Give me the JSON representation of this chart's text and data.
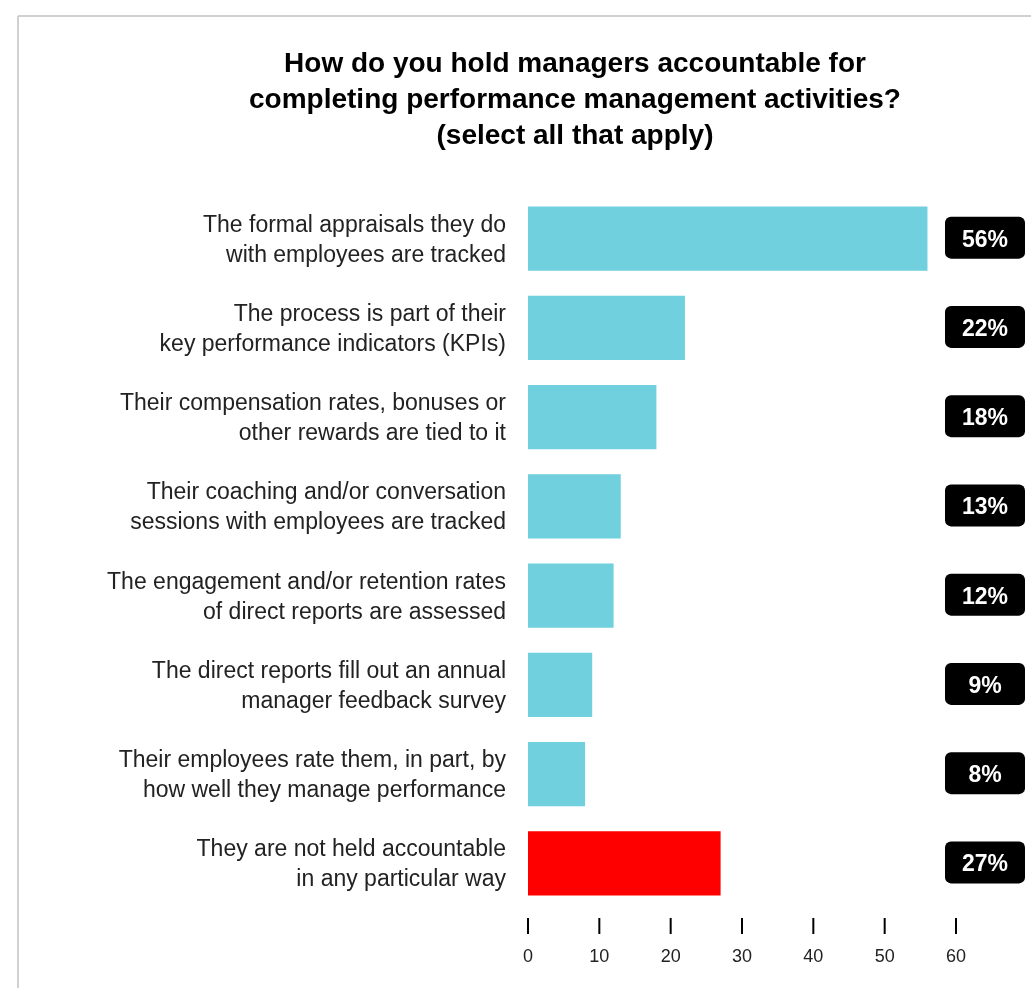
{
  "chart_data": {
    "type": "bar",
    "orientation": "horizontal",
    "title": "How do you hold managers accountable for\ncompleting performance management activities?\n(select all that apply)",
    "categories": [
      "The formal appraisals they do\nwith employees are tracked",
      "The process is part of their\nkey performance indicators (KPIs)",
      "Their compensation rates, bonuses or\nother rewards are tied to it",
      "Their coaching and/or conversation\nsessions with employees are tracked",
      "The engagement and/or retention rates\nof direct reports are assessed",
      "The direct reports fill out an annual\nmanager feedback survey",
      "Their employees rate them, in part, by\nhow well they manage performance",
      "They are not held accountable\nin any particular way"
    ],
    "values": [
      56,
      22,
      18,
      13,
      12,
      9,
      8,
      27
    ],
    "colors": [
      "#70d0de",
      "#70d0de",
      "#70d0de",
      "#70d0de",
      "#70d0de",
      "#70d0de",
      "#70d0de",
      "#ff0000"
    ],
    "value_labels": [
      "56%",
      "22%",
      "18%",
      "13%",
      "12%",
      "9%",
      "8%",
      "27%"
    ],
    "xlim": [
      0,
      60
    ],
    "xticks": [
      0,
      10,
      20,
      30,
      40,
      50,
      60
    ]
  }
}
